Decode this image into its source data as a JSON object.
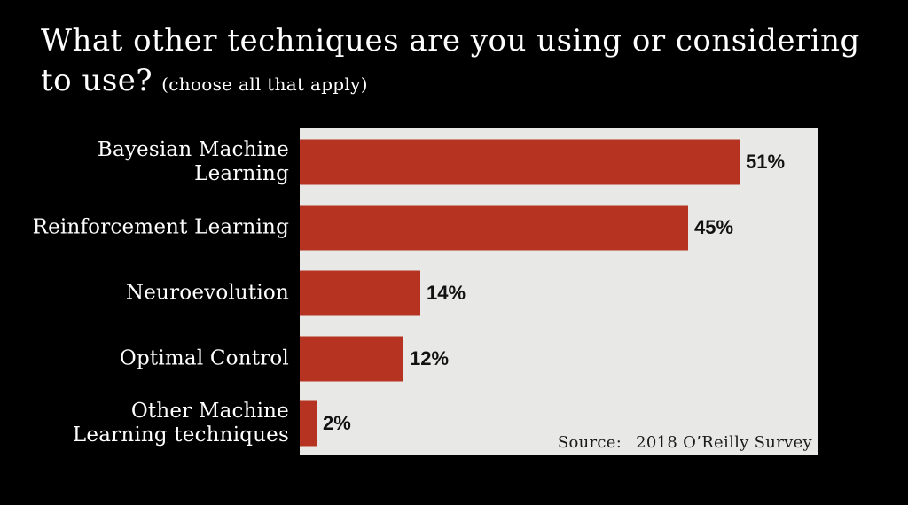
{
  "title": {
    "line1": "What other techniques are you using or considering",
    "line2": "to use?",
    "subtitle": "(choose all that apply)"
  },
  "source": {
    "label": "Source:",
    "value": "2018 O’Reilly Survey"
  },
  "colors": {
    "slide_background": "#000000",
    "plot_background": "#e8e8e7",
    "bar": "#b53320",
    "title_text": "#ffffff",
    "category_text": "#ffffff",
    "value_text": "#121212",
    "source_text": "#1a1a1a"
  },
  "chart_data": {
    "type": "bar",
    "orientation": "horizontal",
    "title": "What other techniques are you using or considering to use? (choose all that apply)",
    "categories": [
      "Bayesian Machine Learning",
      "Reinforcement Learning",
      "Neuroevolution",
      "Optimal Control",
      "Other Machine Learning techniques"
    ],
    "display_labels": [
      "Bayesian Machine Learning",
      "Reinforcement Learning",
      "Neuroevolution",
      "Optimal Control",
      "Other Machine\nLearning techniques"
    ],
    "values": [
      51,
      45,
      14,
      12,
      2
    ],
    "value_labels": [
      "51%",
      "45%",
      "14%",
      "12%",
      "2%"
    ],
    "xlabel": "",
    "ylabel": "",
    "xlim": [
      0,
      60
    ],
    "grid": false,
    "legend": false,
    "annotations": [
      "Source:  2018 O’Reilly Survey"
    ]
  }
}
